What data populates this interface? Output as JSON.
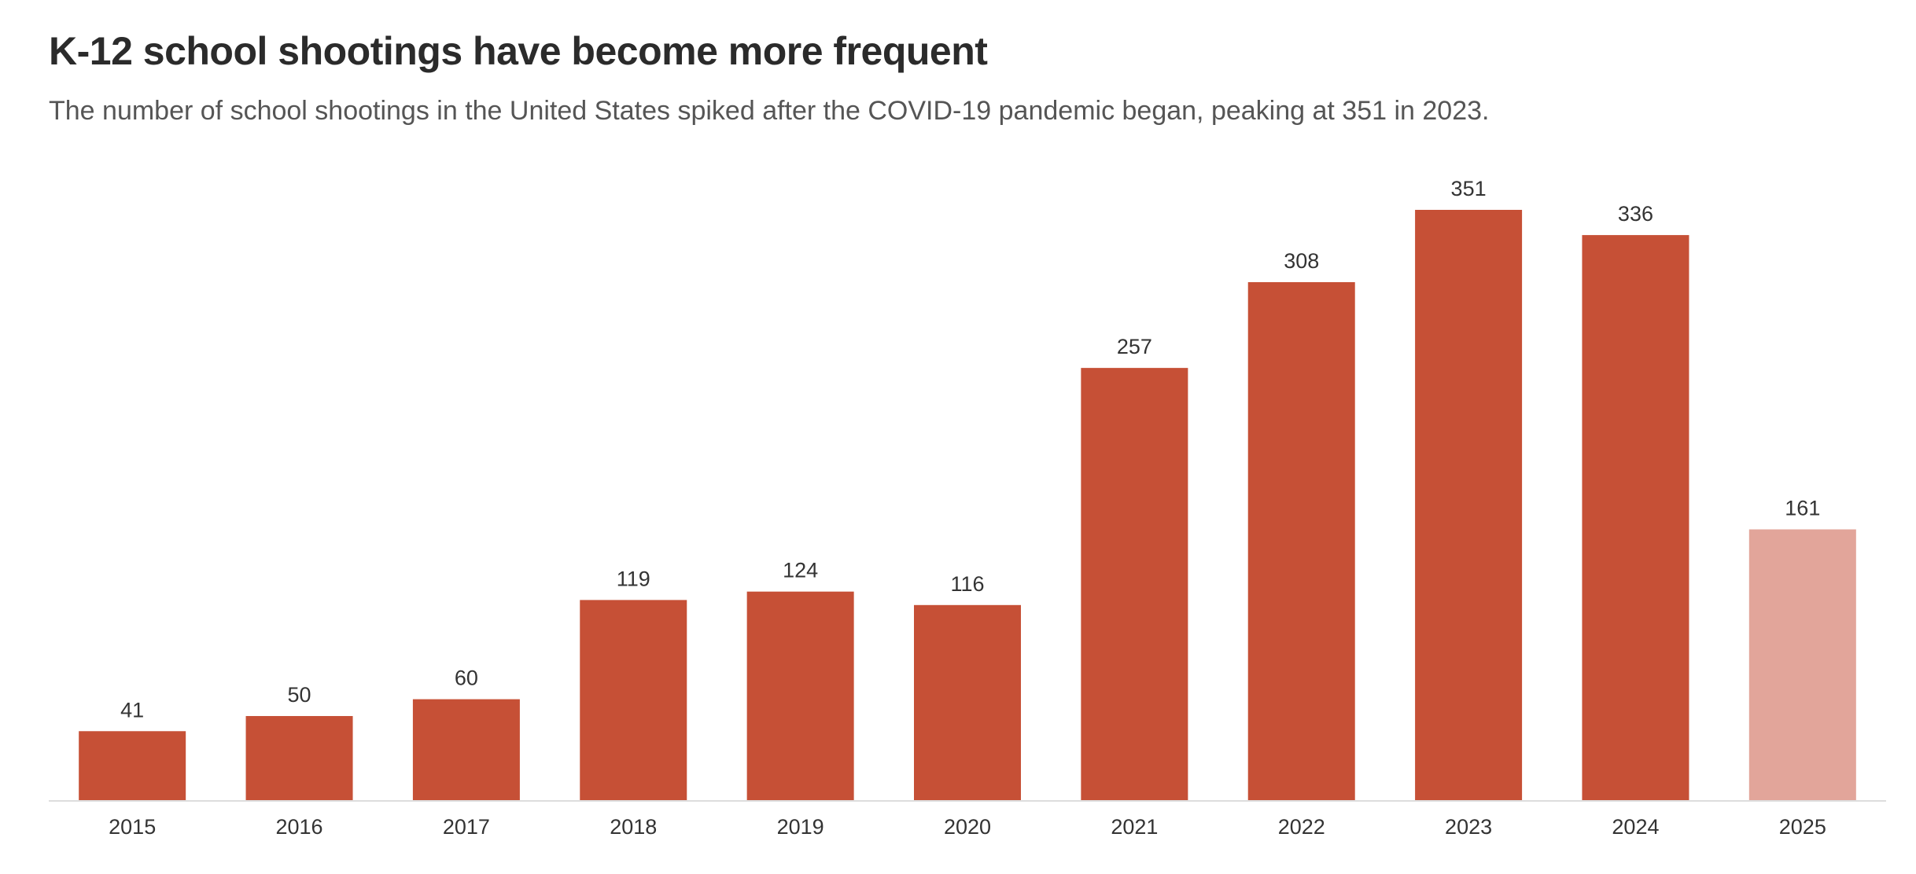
{
  "header": {
    "title": "K-12 school shootings have become more frequent",
    "subtitle": "The number of school shootings in the United States spiked after the COVID-19 pandemic began, peaking at 351 in 2023."
  },
  "colors": {
    "bar": "#c65036",
    "bar_highlight": "#e2a59a",
    "axis": "#dddddd"
  },
  "chart_data": {
    "type": "bar",
    "title": "K-12 school shootings have become more frequent",
    "subtitle": "The number of school shootings in the United States spiked after the COVID-19 pandemic began, peaking at 351 in 2023.",
    "categories": [
      "2015",
      "2016",
      "2017",
      "2018",
      "2019",
      "2020",
      "2021",
      "2022",
      "2023",
      "2024",
      "2025"
    ],
    "values": [
      41,
      50,
      60,
      119,
      124,
      116,
      257,
      308,
      351,
      336,
      161
    ],
    "highlight_categories": [
      "2025"
    ],
    "xlabel": "",
    "ylabel": "",
    "ylim": [
      0,
      351
    ],
    "grid": false,
    "legend": "none",
    "data_labels": true
  }
}
